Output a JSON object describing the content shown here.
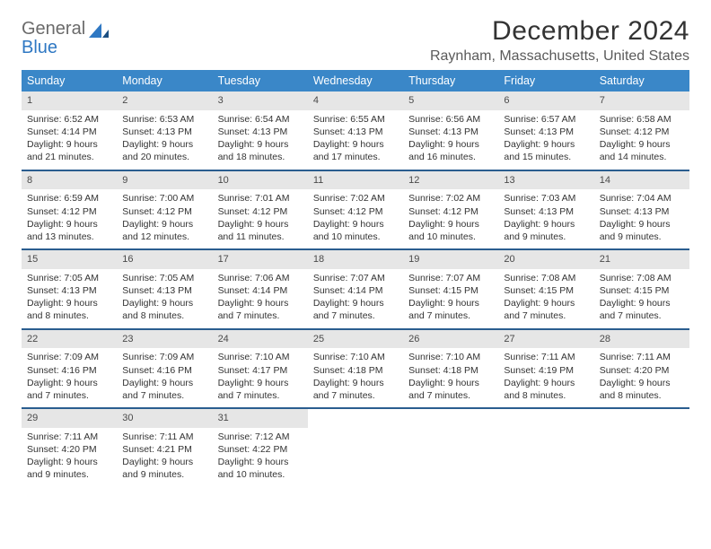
{
  "brand": {
    "general": "General",
    "blue": "Blue"
  },
  "title": "December 2024",
  "location": "Raynham, Massachusetts, United States",
  "colors": {
    "header_bg": "#3a87c8",
    "week_divider": "#2a5d8f",
    "daynum_bg": "#e6e6e6",
    "text": "#333333",
    "logo_gray": "#6a6a6a",
    "logo_blue": "#2f78c3"
  },
  "days_of_week": [
    "Sunday",
    "Monday",
    "Tuesday",
    "Wednesday",
    "Thursday",
    "Friday",
    "Saturday"
  ],
  "days": [
    {
      "n": "1",
      "sunrise": "Sunrise: 6:52 AM",
      "sunset": "Sunset: 4:14 PM",
      "daylight": "Daylight: 9 hours and 21 minutes."
    },
    {
      "n": "2",
      "sunrise": "Sunrise: 6:53 AM",
      "sunset": "Sunset: 4:13 PM",
      "daylight": "Daylight: 9 hours and 20 minutes."
    },
    {
      "n": "3",
      "sunrise": "Sunrise: 6:54 AM",
      "sunset": "Sunset: 4:13 PM",
      "daylight": "Daylight: 9 hours and 18 minutes."
    },
    {
      "n": "4",
      "sunrise": "Sunrise: 6:55 AM",
      "sunset": "Sunset: 4:13 PM",
      "daylight": "Daylight: 9 hours and 17 minutes."
    },
    {
      "n": "5",
      "sunrise": "Sunrise: 6:56 AM",
      "sunset": "Sunset: 4:13 PM",
      "daylight": "Daylight: 9 hours and 16 minutes."
    },
    {
      "n": "6",
      "sunrise": "Sunrise: 6:57 AM",
      "sunset": "Sunset: 4:13 PM",
      "daylight": "Daylight: 9 hours and 15 minutes."
    },
    {
      "n": "7",
      "sunrise": "Sunrise: 6:58 AM",
      "sunset": "Sunset: 4:12 PM",
      "daylight": "Daylight: 9 hours and 14 minutes."
    },
    {
      "n": "8",
      "sunrise": "Sunrise: 6:59 AM",
      "sunset": "Sunset: 4:12 PM",
      "daylight": "Daylight: 9 hours and 13 minutes."
    },
    {
      "n": "9",
      "sunrise": "Sunrise: 7:00 AM",
      "sunset": "Sunset: 4:12 PM",
      "daylight": "Daylight: 9 hours and 12 minutes."
    },
    {
      "n": "10",
      "sunrise": "Sunrise: 7:01 AM",
      "sunset": "Sunset: 4:12 PM",
      "daylight": "Daylight: 9 hours and 11 minutes."
    },
    {
      "n": "11",
      "sunrise": "Sunrise: 7:02 AM",
      "sunset": "Sunset: 4:12 PM",
      "daylight": "Daylight: 9 hours and 10 minutes."
    },
    {
      "n": "12",
      "sunrise": "Sunrise: 7:02 AM",
      "sunset": "Sunset: 4:12 PM",
      "daylight": "Daylight: 9 hours and 10 minutes."
    },
    {
      "n": "13",
      "sunrise": "Sunrise: 7:03 AM",
      "sunset": "Sunset: 4:13 PM",
      "daylight": "Daylight: 9 hours and 9 minutes."
    },
    {
      "n": "14",
      "sunrise": "Sunrise: 7:04 AM",
      "sunset": "Sunset: 4:13 PM",
      "daylight": "Daylight: 9 hours and 9 minutes."
    },
    {
      "n": "15",
      "sunrise": "Sunrise: 7:05 AM",
      "sunset": "Sunset: 4:13 PM",
      "daylight": "Daylight: 9 hours and 8 minutes."
    },
    {
      "n": "16",
      "sunrise": "Sunrise: 7:05 AM",
      "sunset": "Sunset: 4:13 PM",
      "daylight": "Daylight: 9 hours and 8 minutes."
    },
    {
      "n": "17",
      "sunrise": "Sunrise: 7:06 AM",
      "sunset": "Sunset: 4:14 PM",
      "daylight": "Daylight: 9 hours and 7 minutes."
    },
    {
      "n": "18",
      "sunrise": "Sunrise: 7:07 AM",
      "sunset": "Sunset: 4:14 PM",
      "daylight": "Daylight: 9 hours and 7 minutes."
    },
    {
      "n": "19",
      "sunrise": "Sunrise: 7:07 AM",
      "sunset": "Sunset: 4:15 PM",
      "daylight": "Daylight: 9 hours and 7 minutes."
    },
    {
      "n": "20",
      "sunrise": "Sunrise: 7:08 AM",
      "sunset": "Sunset: 4:15 PM",
      "daylight": "Daylight: 9 hours and 7 minutes."
    },
    {
      "n": "21",
      "sunrise": "Sunrise: 7:08 AM",
      "sunset": "Sunset: 4:15 PM",
      "daylight": "Daylight: 9 hours and 7 minutes."
    },
    {
      "n": "22",
      "sunrise": "Sunrise: 7:09 AM",
      "sunset": "Sunset: 4:16 PM",
      "daylight": "Daylight: 9 hours and 7 minutes."
    },
    {
      "n": "23",
      "sunrise": "Sunrise: 7:09 AM",
      "sunset": "Sunset: 4:16 PM",
      "daylight": "Daylight: 9 hours and 7 minutes."
    },
    {
      "n": "24",
      "sunrise": "Sunrise: 7:10 AM",
      "sunset": "Sunset: 4:17 PM",
      "daylight": "Daylight: 9 hours and 7 minutes."
    },
    {
      "n": "25",
      "sunrise": "Sunrise: 7:10 AM",
      "sunset": "Sunset: 4:18 PM",
      "daylight": "Daylight: 9 hours and 7 minutes."
    },
    {
      "n": "26",
      "sunrise": "Sunrise: 7:10 AM",
      "sunset": "Sunset: 4:18 PM",
      "daylight": "Daylight: 9 hours and 7 minutes."
    },
    {
      "n": "27",
      "sunrise": "Sunrise: 7:11 AM",
      "sunset": "Sunset: 4:19 PM",
      "daylight": "Daylight: 9 hours and 8 minutes."
    },
    {
      "n": "28",
      "sunrise": "Sunrise: 7:11 AM",
      "sunset": "Sunset: 4:20 PM",
      "daylight": "Daylight: 9 hours and 8 minutes."
    },
    {
      "n": "29",
      "sunrise": "Sunrise: 7:11 AM",
      "sunset": "Sunset: 4:20 PM",
      "daylight": "Daylight: 9 hours and 9 minutes."
    },
    {
      "n": "30",
      "sunrise": "Sunrise: 7:11 AM",
      "sunset": "Sunset: 4:21 PM",
      "daylight": "Daylight: 9 hours and 9 minutes."
    },
    {
      "n": "31",
      "sunrise": "Sunrise: 7:12 AM",
      "sunset": "Sunset: 4:22 PM",
      "daylight": "Daylight: 9 hours and 10 minutes."
    }
  ]
}
